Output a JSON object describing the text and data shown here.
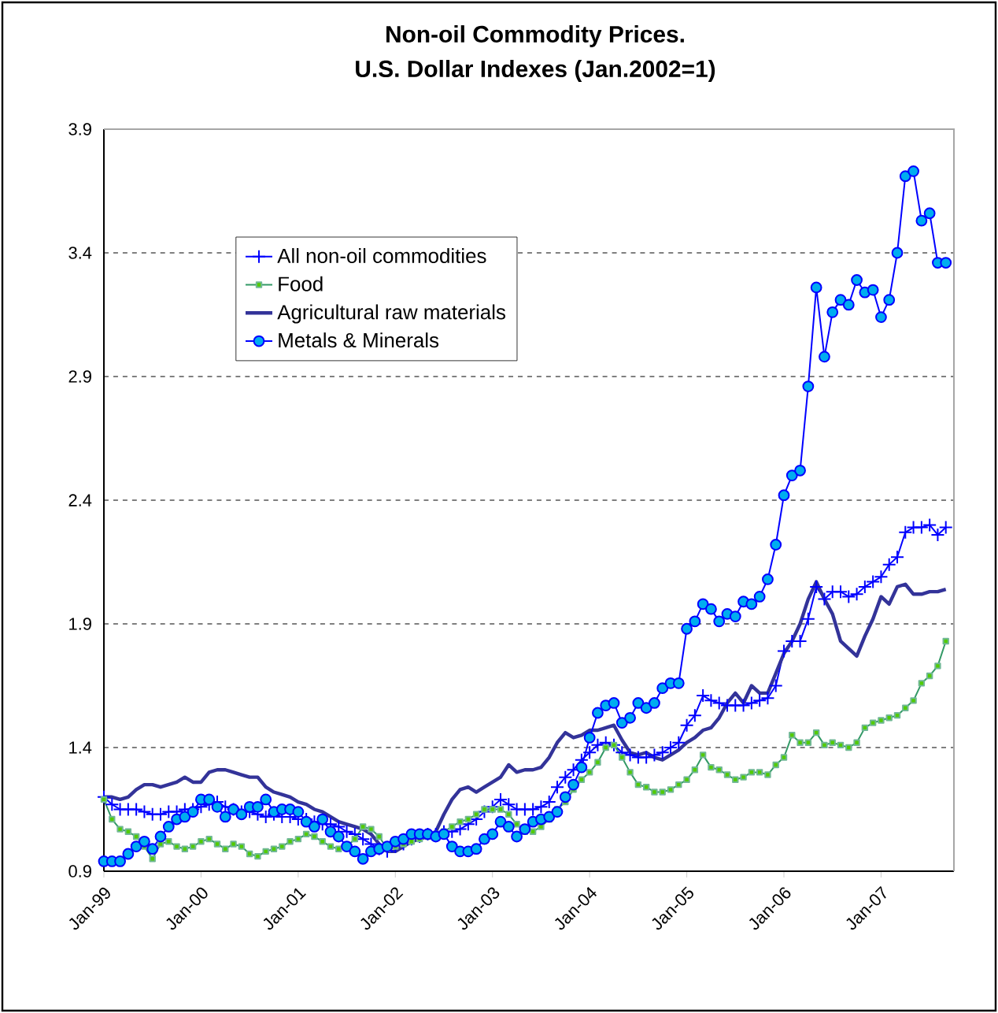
{
  "chart_data": {
    "type": "line",
    "title": "Non-oil Commodity Prices.",
    "subtitle": "U.S. Dollar Indexes (Jan.2002=1)",
    "x": [
      "1999-01",
      "1999-02",
      "1999-03",
      "1999-04",
      "1999-05",
      "1999-06",
      "1999-07",
      "1999-08",
      "1999-09",
      "1999-10",
      "1999-11",
      "1999-12",
      "2000-01",
      "2000-02",
      "2000-03",
      "2000-04",
      "2000-05",
      "2000-06",
      "2000-07",
      "2000-08",
      "2000-09",
      "2000-10",
      "2000-11",
      "2000-12",
      "2001-01",
      "2001-02",
      "2001-03",
      "2001-04",
      "2001-05",
      "2001-06",
      "2001-07",
      "2001-08",
      "2001-09",
      "2001-10",
      "2001-11",
      "2001-12",
      "2002-01",
      "2002-02",
      "2002-03",
      "2002-04",
      "2002-05",
      "2002-06",
      "2002-07",
      "2002-08",
      "2002-09",
      "2002-10",
      "2002-11",
      "2002-12",
      "2003-01",
      "2003-02",
      "2003-03",
      "2003-04",
      "2003-05",
      "2003-06",
      "2003-07",
      "2003-08",
      "2003-09",
      "2003-10",
      "2003-11",
      "2003-12",
      "2004-01",
      "2004-02",
      "2004-03",
      "2004-04",
      "2004-05",
      "2004-06",
      "2004-07",
      "2004-08",
      "2004-09",
      "2004-10",
      "2004-11",
      "2004-12",
      "2005-01",
      "2005-02",
      "2005-03",
      "2005-04",
      "2005-05",
      "2005-06",
      "2005-07",
      "2005-08",
      "2005-09",
      "2005-10",
      "2005-11",
      "2005-12",
      "2006-01",
      "2006-02",
      "2006-03",
      "2006-04",
      "2006-05",
      "2006-06",
      "2006-07",
      "2006-08",
      "2006-09",
      "2006-10",
      "2006-11",
      "2006-12",
      "2007-01",
      "2007-02",
      "2007-03",
      "2007-04",
      "2007-05",
      "2007-06",
      "2007-07",
      "2007-08",
      "2007-09"
    ],
    "series": [
      {
        "name": "All non-oil commodities",
        "color": "#0000ff",
        "marker": "cross",
        "values": [
          1.2,
          1.17,
          1.15,
          1.15,
          1.15,
          1.14,
          1.13,
          1.13,
          1.14,
          1.14,
          1.15,
          1.15,
          1.16,
          1.17,
          1.18,
          1.16,
          1.15,
          1.14,
          1.14,
          1.13,
          1.12,
          1.13,
          1.12,
          1.12,
          1.11,
          1.11,
          1.1,
          1.09,
          1.09,
          1.08,
          1.06,
          1.05,
          1.03,
          1.01,
          0.99,
          0.98,
          1.0,
          1.01,
          1.03,
          1.04,
          1.05,
          1.05,
          1.06,
          1.06,
          1.07,
          1.09,
          1.11,
          1.14,
          1.16,
          1.19,
          1.17,
          1.15,
          1.15,
          1.15,
          1.16,
          1.18,
          1.24,
          1.28,
          1.31,
          1.35,
          1.38,
          1.41,
          1.42,
          1.41,
          1.38,
          1.37,
          1.36,
          1.36,
          1.37,
          1.38,
          1.4,
          1.42,
          1.49,
          1.53,
          1.61,
          1.59,
          1.58,
          1.57,
          1.57,
          1.57,
          1.58,
          1.59,
          1.6,
          1.65,
          1.79,
          1.83,
          1.83,
          1.92,
          2.05,
          2.0,
          2.03,
          2.03,
          2.01,
          2.02,
          2.05,
          2.07,
          2.09,
          2.14,
          2.17,
          2.27,
          2.29,
          2.29,
          2.3,
          2.26,
          2.29
        ]
      },
      {
        "name": "Food",
        "color": "#339966",
        "marker": "square",
        "values": [
          1.19,
          1.11,
          1.07,
          1.06,
          1.04,
          1.0,
          0.95,
          1.01,
          1.02,
          1.0,
          0.99,
          1.0,
          1.02,
          1.03,
          1.01,
          0.99,
          1.01,
          1.0,
          0.97,
          0.96,
          0.98,
          0.99,
          1.0,
          1.02,
          1.03,
          1.05,
          1.04,
          1.02,
          1.0,
          0.99,
          1.0,
          1.03,
          1.08,
          1.07,
          1.04,
          0.99,
          1.0,
          1.01,
          1.02,
          1.03,
          1.04,
          1.05,
          1.06,
          1.08,
          1.1,
          1.11,
          1.13,
          1.15,
          1.15,
          1.15,
          1.13,
          1.09,
          1.06,
          1.06,
          1.08,
          1.11,
          1.15,
          1.18,
          1.23,
          1.27,
          1.3,
          1.34,
          1.4,
          1.41,
          1.36,
          1.3,
          1.25,
          1.24,
          1.22,
          1.22,
          1.23,
          1.25,
          1.27,
          1.31,
          1.37,
          1.32,
          1.31,
          1.29,
          1.27,
          1.28,
          1.3,
          1.3,
          1.29,
          1.33,
          1.36,
          1.45,
          1.42,
          1.42,
          1.46,
          1.41,
          1.42,
          1.41,
          1.4,
          1.42,
          1.48,
          1.5,
          1.51,
          1.52,
          1.53,
          1.56,
          1.59,
          1.66,
          1.69,
          1.73,
          1.83
        ]
      },
      {
        "name": "Agricultural raw materials",
        "color": "#333399",
        "marker": "none",
        "values": [
          1.2,
          1.2,
          1.19,
          1.2,
          1.23,
          1.25,
          1.25,
          1.24,
          1.25,
          1.26,
          1.28,
          1.26,
          1.26,
          1.3,
          1.31,
          1.31,
          1.3,
          1.29,
          1.28,
          1.28,
          1.24,
          1.22,
          1.21,
          1.2,
          1.18,
          1.17,
          1.15,
          1.14,
          1.12,
          1.1,
          1.09,
          1.08,
          1.07,
          1.05,
          1.01,
          0.98,
          0.98,
          1.0,
          1.02,
          1.03,
          1.04,
          1.06,
          1.13,
          1.19,
          1.23,
          1.24,
          1.22,
          1.24,
          1.26,
          1.28,
          1.33,
          1.3,
          1.31,
          1.31,
          1.32,
          1.36,
          1.42,
          1.46,
          1.44,
          1.45,
          1.47,
          1.47,
          1.48,
          1.49,
          1.43,
          1.38,
          1.37,
          1.38,
          1.36,
          1.35,
          1.37,
          1.39,
          1.42,
          1.44,
          1.47,
          1.48,
          1.52,
          1.58,
          1.62,
          1.58,
          1.65,
          1.62,
          1.62,
          1.7,
          1.78,
          1.83,
          1.9,
          2.0,
          2.07,
          2.0,
          1.94,
          1.83,
          1.8,
          1.77,
          1.85,
          1.92,
          2.01,
          1.98,
          2.05,
          2.06,
          2.02,
          2.02,
          2.03,
          2.03,
          2.04
        ]
      },
      {
        "name": "Metals & Minerals",
        "color": "#0000ff",
        "marker": "circle",
        "values": [
          0.94,
          0.94,
          0.94,
          0.97,
          1.0,
          1.02,
          0.99,
          1.04,
          1.08,
          1.11,
          1.12,
          1.14,
          1.19,
          1.19,
          1.16,
          1.12,
          1.15,
          1.13,
          1.16,
          1.16,
          1.19,
          1.14,
          1.15,
          1.15,
          1.14,
          1.1,
          1.08,
          1.11,
          1.06,
          1.04,
          1.0,
          0.98,
          0.95,
          0.98,
          0.99,
          1.0,
          1.02,
          1.03,
          1.05,
          1.05,
          1.05,
          1.04,
          1.05,
          1.0,
          0.98,
          0.98,
          0.99,
          1.03,
          1.05,
          1.1,
          1.08,
          1.04,
          1.07,
          1.1,
          1.11,
          1.12,
          1.14,
          1.2,
          1.25,
          1.32,
          1.44,
          1.54,
          1.57,
          1.58,
          1.5,
          1.52,
          1.58,
          1.56,
          1.58,
          1.64,
          1.66,
          1.66,
          1.88,
          1.91,
          1.98,
          1.96,
          1.91,
          1.94,
          1.93,
          1.99,
          1.98,
          2.01,
          2.08,
          2.22,
          2.42,
          2.5,
          2.52,
          2.86,
          3.26,
          2.98,
          3.16,
          3.21,
          3.19,
          3.29,
          3.24,
          3.25,
          3.14,
          3.21,
          3.4,
          3.71,
          3.73,
          3.53,
          3.56,
          3.36,
          3.36
        ]
      }
    ],
    "xlim": [
      "1999-01",
      "2007-10"
    ],
    "xticks": [
      {
        "value": "1999-01",
        "label": "Jan-99"
      },
      {
        "value": "2000-01",
        "label": "Jan-00"
      },
      {
        "value": "2001-01",
        "label": "Jan-01"
      },
      {
        "value": "2002-01",
        "label": "Jan-02"
      },
      {
        "value": "2003-01",
        "label": "Jan-03"
      },
      {
        "value": "2004-01",
        "label": "Jan-04"
      },
      {
        "value": "2005-01",
        "label": "Jan-05"
      },
      {
        "value": "2006-01",
        "label": "Jan-06"
      },
      {
        "value": "2007-01",
        "label": "Jan-07"
      }
    ],
    "ylim": [
      0.9,
      3.9
    ],
    "yticks": [
      0.9,
      1.4,
      1.9,
      2.4,
      2.9,
      3.4,
      3.9
    ],
    "grid": "y",
    "legend": "top left"
  }
}
